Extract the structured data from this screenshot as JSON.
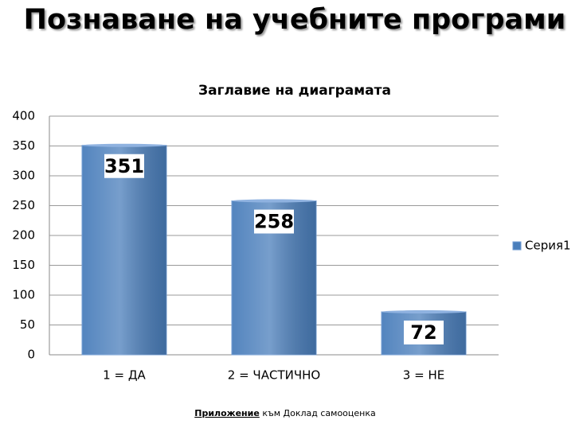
{
  "slide_title": "Познаване на учебните програми",
  "chart_data": {
    "type": "bar",
    "title": "Заглавие на диаграмата",
    "categories": [
      "1 = ДА",
      "2 = ЧАСТИЧНО",
      "3 = НЕ"
    ],
    "series": [
      {
        "name": "Серия1",
        "color": "#4a7ebb",
        "values": [
          351,
          258,
          72
        ]
      }
    ],
    "ylim": [
      0,
      400
    ],
    "yticks": [
      0,
      50,
      100,
      150,
      200,
      250,
      300,
      350,
      400
    ],
    "grid": true,
    "legend": "right"
  },
  "footer": {
    "bold": "Приложение",
    "rest": "към Доклад самооценка"
  }
}
